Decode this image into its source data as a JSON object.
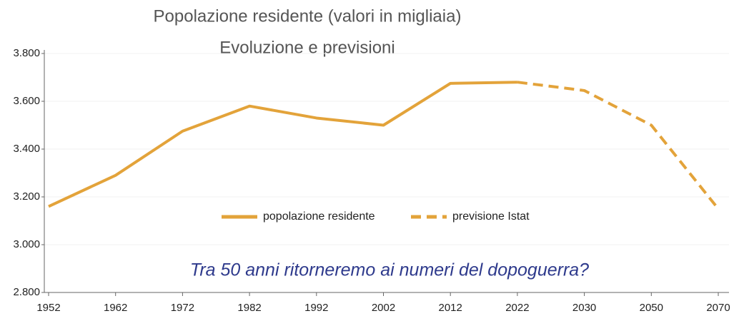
{
  "chart_data": {
    "type": "line",
    "title": "Popolazione residente (valori in migliaia)",
    "subtitle": "Evoluzione e previsioni",
    "annotation": "Tra 50 anni ritorneremo ai numeri del dopoguerra?",
    "categories": [
      "1952",
      "1962",
      "1972",
      "1982",
      "1992",
      "2002",
      "2012",
      "2022",
      "2030",
      "2050",
      "2070"
    ],
    "series": [
      {
        "name": "popolazione residente",
        "color": "#e3a33a",
        "dash": false,
        "values": [
          3160,
          3290,
          3475,
          3580,
          3530,
          3500,
          3675,
          3680,
          null,
          null,
          null
        ]
      },
      {
        "name": "previsione Istat",
        "color": "#e3a33a",
        "dash": true,
        "values": [
          null,
          null,
          null,
          null,
          null,
          null,
          null,
          3680,
          3645,
          3500,
          3150
        ]
      }
    ],
    "ylim": [
      2800,
      3800
    ],
    "yticks": [
      {
        "value": 2800,
        "label": "2.800"
      },
      {
        "value": 3000,
        "label": "3.000"
      },
      {
        "value": 3200,
        "label": "3.200"
      },
      {
        "value": 3400,
        "label": "3.400"
      },
      {
        "value": 3600,
        "label": "3.600"
      },
      {
        "value": 3800,
        "label": "3.800"
      }
    ],
    "grid": true,
    "legend": "center"
  }
}
